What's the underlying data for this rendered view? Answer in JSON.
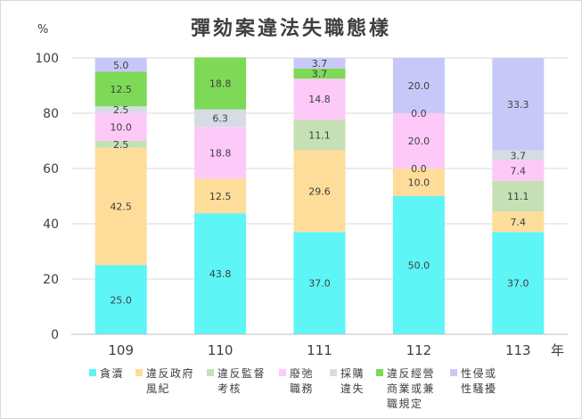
{
  "chart_data": {
    "type": "bar",
    "stacked": true,
    "title": "彈劾案違法失職態樣",
    "ylabel": "%",
    "xlabel": "年",
    "ylim": [
      0,
      100
    ],
    "yticks": [
      "0",
      "20",
      "40",
      "60",
      "80",
      "100"
    ],
    "grid": true,
    "legend_position": "bottom",
    "categories": [
      "109",
      "110",
      "111",
      "112",
      "113"
    ],
    "series": [
      {
        "name": "貪瀆",
        "color": "#5ef5f7",
        "values": [
          25.0,
          43.8,
          37.0,
          50.0,
          37.0
        ],
        "labels": [
          "25.0",
          "43.8",
          "37.0",
          "50.0",
          "37.0"
        ]
      },
      {
        "name": "違反政府風紀",
        "color": "#fedd9a",
        "values": [
          42.5,
          12.5,
          29.6,
          10.0,
          7.4
        ],
        "labels": [
          "42.5",
          "12.5",
          "29.6",
          "10.0",
          "7.4"
        ]
      },
      {
        "name": "違反監督考核",
        "color": "#c5e0b4",
        "values": [
          2.5,
          0,
          11.1,
          0,
          11.1
        ],
        "labels": [
          "2.5",
          "",
          "11.1",
          "0.0",
          "11.1"
        ]
      },
      {
        "name": "廢弛職務",
        "color": "#fdc9f8",
        "values": [
          10.0,
          18.8,
          14.8,
          20.0,
          7.4
        ],
        "labels": [
          "10.0",
          "18.8",
          "14.8",
          "20.0",
          "7.4"
        ]
      },
      {
        "name": "採購違失",
        "color": "#d6dce4",
        "values": [
          2.5,
          6.3,
          0,
          0,
          3.7
        ],
        "labels": [
          "2.5",
          "6.3",
          "",
          "0.0",
          "3.7"
        ]
      },
      {
        "name": "違反經營商業或兼職規定",
        "color": "#7ed957",
        "values": [
          12.5,
          18.8,
          3.7,
          0,
          0
        ],
        "labels": [
          "12.5",
          "18.8",
          "3.7",
          "",
          ""
        ]
      },
      {
        "name": "性侵或性騷擾",
        "color": "#c8c8f8",
        "values": [
          5.0,
          0,
          3.7,
          20.0,
          33.3
        ],
        "labels": [
          "5.0",
          "",
          "3.7",
          "20.0",
          "33.3"
        ]
      }
    ],
    "legend": [
      {
        "lines": [
          "貪瀆"
        ]
      },
      {
        "lines": [
          "違反政府",
          "風紀"
        ]
      },
      {
        "lines": [
          "違反監督",
          "考核"
        ]
      },
      {
        "lines": [
          "廢弛",
          "職務"
        ]
      },
      {
        "lines": [
          "採購",
          "違失"
        ]
      },
      {
        "lines": [
          "違反經營",
          "商業或兼",
          "職規定"
        ]
      },
      {
        "lines": [
          "性侵或",
          "性騷擾"
        ]
      }
    ]
  }
}
